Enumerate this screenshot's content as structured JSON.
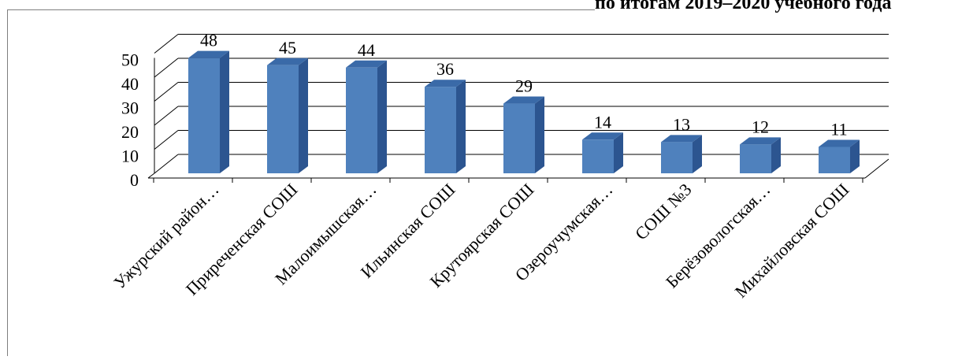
{
  "heading_fragment": "по итогам 2019–2020 учебного года",
  "chart_data": {
    "type": "bar",
    "style": "3d-clustered-column",
    "title": "",
    "xlabel": "",
    "ylabel": "",
    "ylim": [
      0,
      50
    ],
    "yticks": [
      0,
      10,
      20,
      30,
      40,
      50
    ],
    "grid": true,
    "legend": "none",
    "colors": {
      "bar_front": "#4F81BD",
      "bar_side": "#2C5590",
      "bar_top": "#3A6AA8",
      "grid": "#000000"
    },
    "categories": [
      "Ужурский район…",
      "Приреченская СОШ",
      "Малоимышская…",
      "Ильинская СОШ",
      "Крутоярская СОШ",
      "Озероучумская…",
      "СОШ №3",
      "Берёзовологская…",
      "Михайловская СОШ"
    ],
    "values": [
      48,
      45,
      44,
      36,
      29,
      14,
      13,
      12,
      11
    ],
    "data_labels": [
      "48",
      "45",
      "44",
      "36",
      "29",
      "14",
      "13",
      "12",
      "11"
    ]
  }
}
